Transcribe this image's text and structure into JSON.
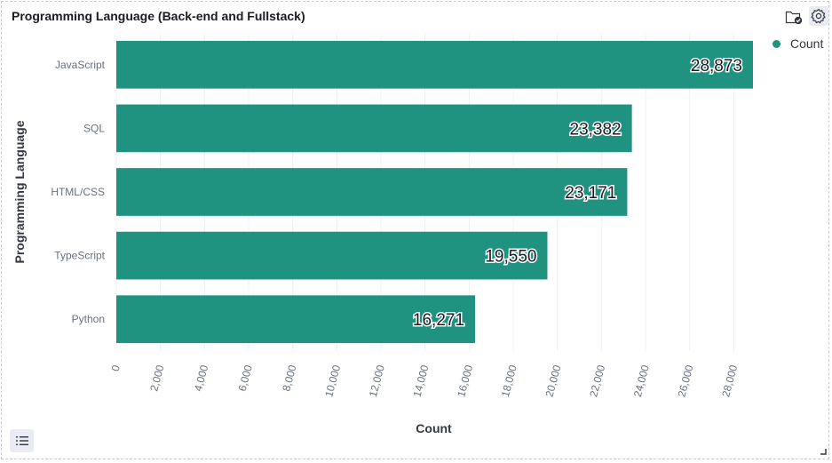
{
  "panel": {
    "title": "Programming Language (Back-end and Fullstack)"
  },
  "icons": {
    "folder": "folder-check-icon",
    "settings": "gear-icon",
    "list": "list-icon",
    "resize": "resize-corner-icon"
  },
  "colors": {
    "bar": "#209280",
    "grid": "#eef0f3"
  },
  "chart_data": {
    "type": "bar",
    "orientation": "horizontal",
    "categories": [
      "JavaScript",
      "SQL",
      "HTML/CSS",
      "TypeScript",
      "Python"
    ],
    "series": [
      {
        "name": "Count",
        "values": [
          28873,
          23382,
          23171,
          19550,
          16271
        ]
      }
    ],
    "value_labels": [
      "28,873",
      "23,382",
      "23,171",
      "19,550",
      "16,271"
    ],
    "xlabel": "Count",
    "ylabel": "Programming Language",
    "xlim": [
      0,
      28873
    ],
    "x_ticks": [
      0,
      2000,
      4000,
      6000,
      8000,
      10000,
      12000,
      14000,
      16000,
      18000,
      20000,
      22000,
      24000,
      26000,
      28000
    ],
    "x_tick_labels": [
      "0",
      "2,000",
      "4,000",
      "6,000",
      "8,000",
      "10,000",
      "12,000",
      "14,000",
      "16,000",
      "18,000",
      "20,000",
      "22,000",
      "24,000",
      "26,000",
      "28,000"
    ],
    "grid": "vertical",
    "legend_position": "top-right"
  }
}
